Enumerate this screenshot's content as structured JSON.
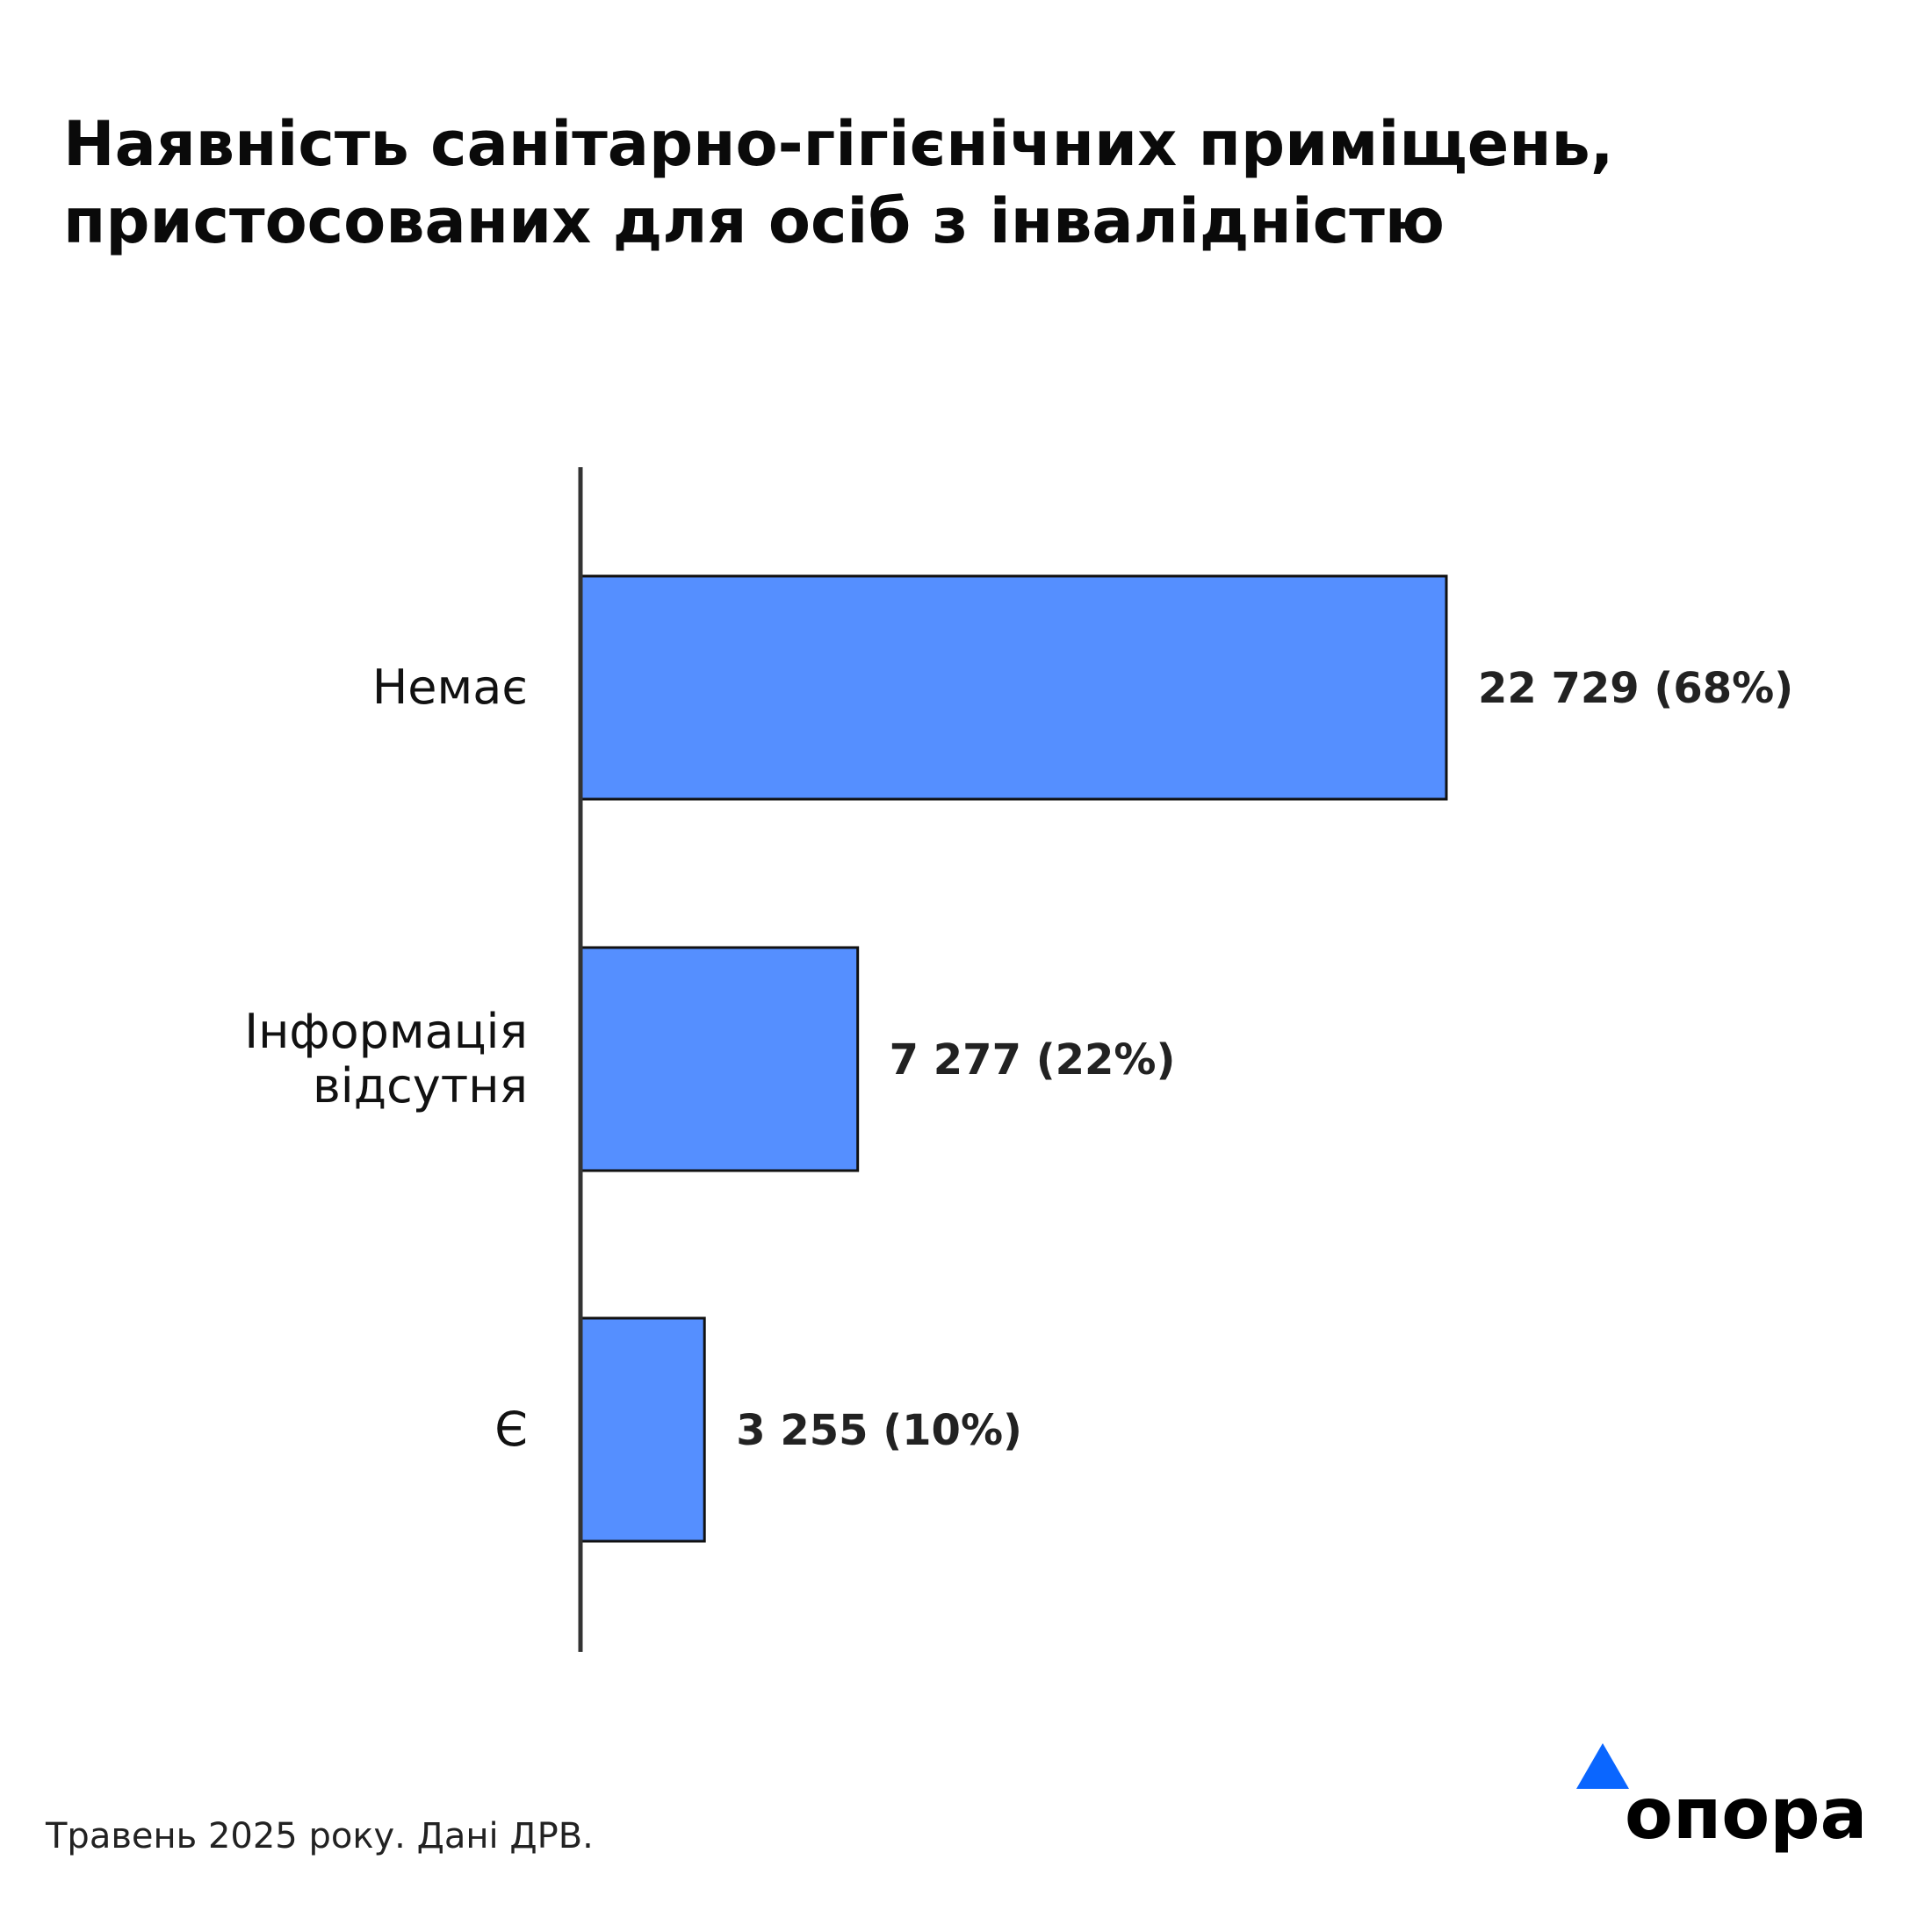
{
  "title_lines": [
    "Наявність санітарно-гігієнічних приміщень,",
    "пристосованих для осіб з інвалідністю"
  ],
  "footer": "Травень 2025 року. Дані ДРВ.",
  "logo_text": "опора",
  "colors": {
    "bar": "#558FFF",
    "bar_stroke": "#111111",
    "axis": "#333333",
    "logo_triangle": "#0A66FF"
  },
  "chart_data": {
    "type": "bar",
    "orientation": "horizontal",
    "title": "Наявність санітарно-гігієнічних приміщень, пристосованих для осіб з інвалідністю",
    "categories": [
      [
        "Немає"
      ],
      [
        "Інформація",
        "відсутня"
      ],
      [
        "Є"
      ]
    ],
    "values": [
      22729,
      7277,
      3255
    ],
    "value_labels": [
      "22 729 (68%)",
      "7 277 (22%)",
      "3 255 (10%)"
    ],
    "percents": [
      68,
      22,
      10
    ],
    "xlabel": "",
    "ylabel": "",
    "grid": false
  }
}
